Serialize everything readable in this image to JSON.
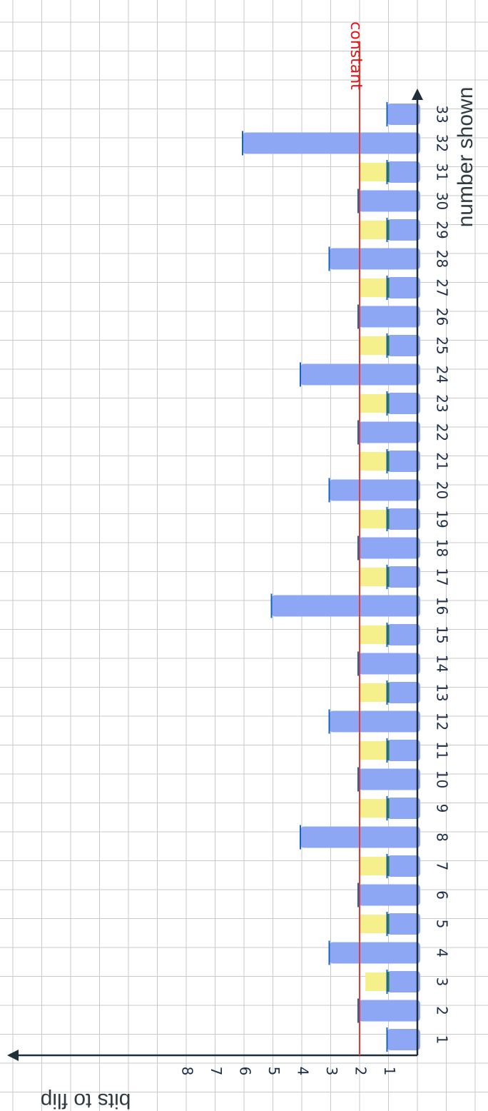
{
  "chart_data": {
    "type": "bar",
    "title": "",
    "xlabel": "number shown",
    "ylabel": "bits to flip",
    "ylim": [
      0,
      8
    ],
    "y_ticks": [
      "1",
      "2",
      "3",
      "4",
      "5",
      "6",
      "7",
      "8"
    ],
    "grid": true,
    "categories": [
      "1",
      "2",
      "3",
      "4",
      "5",
      "6",
      "7",
      "8",
      "9",
      "10",
      "11",
      "12",
      "13",
      "14",
      "15",
      "16",
      "17",
      "18",
      "19",
      "20",
      "21",
      "22",
      "23",
      "24",
      "25",
      "26",
      "27",
      "28",
      "29",
      "30",
      "31",
      "32",
      "33"
    ],
    "series": [
      {
        "values": [
          1,
          2,
          1,
          3,
          1,
          2,
          1,
          4,
          1,
          2,
          1,
          3,
          1,
          2,
          1,
          5,
          1,
          2,
          1,
          3,
          1,
          2,
          1,
          4,
          1,
          2,
          1,
          3,
          1,
          2,
          1,
          6,
          1
        ]
      },
      {
        "values": [
          0,
          0,
          1.8,
          0,
          2,
          0,
          2,
          0,
          2,
          0,
          2,
          0,
          2,
          0,
          2,
          0,
          2,
          0,
          2,
          0,
          2,
          0,
          2,
          0,
          2,
          0,
          2,
          0,
          2,
          0,
          2,
          0,
          0
        ]
      }
    ],
    "reference_line": {
      "value": 2,
      "label": "constant"
    },
    "colors": {
      "bars": "#8ea7f5",
      "secondary": "#f5f08c",
      "reference": "#e53935",
      "axis": "#1f2f3a",
      "grid": "#c9c9c9",
      "bar_cap": "#1565c0",
      "bar_mark": "#2e7d32"
    }
  }
}
